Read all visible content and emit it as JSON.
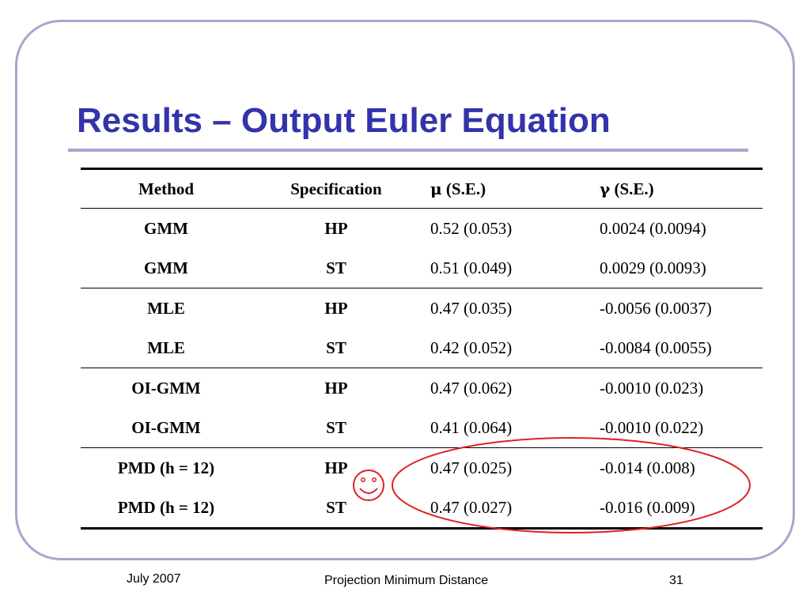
{
  "slide": {
    "title": "Results – Output Euler Equation",
    "colors": {
      "title": "#3333aa",
      "frame": "#a3a9cc",
      "annotation": "#e02020"
    },
    "annotation_icon": "smiley-face-icon"
  },
  "table": {
    "headers": {
      "method": "Method",
      "specification": "Specification",
      "mu_symbol": "μ",
      "mu_label": " (S.E.)",
      "gamma_symbol": "γ",
      "gamma_label": " (S.E.)"
    },
    "rows": [
      {
        "method": "GMM",
        "specification": "HP",
        "mu": "0.52 (0.053)",
        "gamma": "0.0024 (0.0094)"
      },
      {
        "method": "GMM",
        "specification": "ST",
        "mu": "0.51 (0.049)",
        "gamma": "0.0029 (0.0093)"
      },
      {
        "method": "MLE",
        "specification": "HP",
        "mu": "0.47 (0.035)",
        "gamma": "-0.0056 (0.0037)"
      },
      {
        "method": "MLE",
        "specification": "ST",
        "mu": "0.42 (0.052)",
        "gamma": "-0.0084 (0.0055)"
      },
      {
        "method": "OI-GMM",
        "specification": "HP",
        "mu": "0.47 (0.062)",
        "gamma": "-0.0010 (0.023)"
      },
      {
        "method": "OI-GMM",
        "specification": "ST",
        "mu": "0.41 (0.064)",
        "gamma": "-0.0010 (0.022)"
      },
      {
        "method": "PMD (h = 12)",
        "specification": "HP",
        "mu": "0.47 (0.025)",
        "gamma": "-0.014 (0.008)"
      },
      {
        "method": "PMD (h = 12)",
        "specification": "ST",
        "mu": "0.47 (0.027)",
        "gamma": "-0.016 (0.009)"
      }
    ]
  },
  "footer": {
    "date": "July 2007",
    "center": "Projection Minimum Distance",
    "page_number": "31"
  }
}
